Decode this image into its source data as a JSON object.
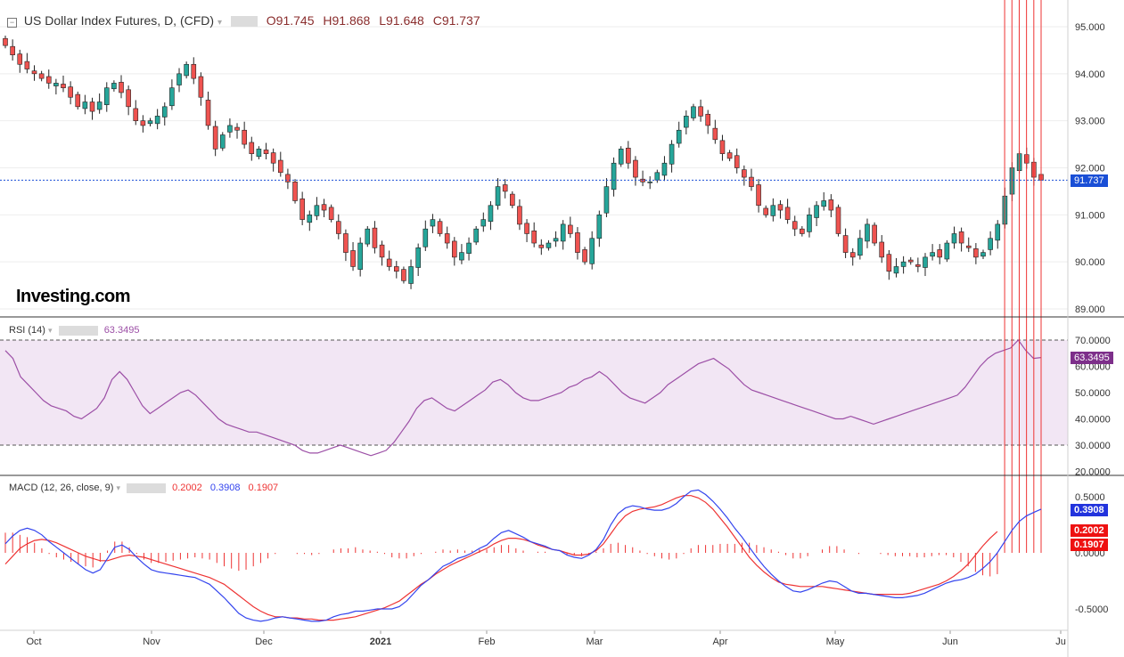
{
  "header": {
    "symbol": "US Dollar Index Futures, D, (CFD)",
    "open": "O91.745",
    "high": "H91.868",
    "low": "L91.648",
    "close": "C91.737"
  },
  "watermark": "Investing.com",
  "price_axis": [
    "95.000",
    "94.000",
    "93.000",
    "92.000",
    "91.000",
    "90.000",
    "89.000"
  ],
  "last_price_label": "91.737",
  "rsi": {
    "label": "RSI (14)",
    "value": "63.3495",
    "axis": [
      "70.0000",
      "60.0000",
      "50.0000",
      "40.0000",
      "30.0000",
      "20.0000"
    ]
  },
  "macd": {
    "label": "MACD (12, 26, close, 9)",
    "hist": "0.2002",
    "macd": "0.3908",
    "signal": "0.1907",
    "axis": [
      "0.5000",
      "0.0000",
      "-0.5000"
    ]
  },
  "time_axis": [
    "Oct",
    "Nov",
    "Dec",
    "2021",
    "Feb",
    "Mar",
    "Apr",
    "May",
    "Jun",
    "Ju"
  ],
  "colors": {
    "up": "#26a69a",
    "down": "#ef5350",
    "rsi": "#9c4fa6",
    "rsi_band": "#f2e6f4",
    "macd": "#3344ee",
    "signal": "#ee3333",
    "hist": "#ee3333",
    "price_line": "#1a4fd6"
  },
  "chart_data": [
    {
      "type": "candlestick",
      "title": "US Dollar Index Futures, D, (CFD)",
      "ylim": [
        88.9,
        95.3
      ],
      "last": 91.737,
      "close_series": [
        94.6,
        94.4,
        94.2,
        94.1,
        94.0,
        93.9,
        93.8,
        93.8,
        93.7,
        93.5,
        93.3,
        93.4,
        93.2,
        93.4,
        93.7,
        93.8,
        93.6,
        93.3,
        93.0,
        92.9,
        93.0,
        93.1,
        93.3,
        93.7,
        94.0,
        94.2,
        93.9,
        93.5,
        92.9,
        92.4,
        92.7,
        92.9,
        92.8,
        92.5,
        92.3,
        92.4,
        92.3,
        92.1,
        91.9,
        91.7,
        91.3,
        90.9,
        91.0,
        91.2,
        91.1,
        90.9,
        90.6,
        90.2,
        89.9,
        90.4,
        90.7,
        90.3,
        90.1,
        89.9,
        89.8,
        89.6,
        89.9,
        90.3,
        90.7,
        90.9,
        90.6,
        90.4,
        90.1,
        90.2,
        90.4,
        90.7,
        90.9,
        91.2,
        91.6,
        91.5,
        91.2,
        90.8,
        90.6,
        90.4,
        90.3,
        90.4,
        90.5,
        90.8,
        90.6,
        90.2,
        90.0,
        90.5,
        91.0,
        91.6,
        92.1,
        92.4,
        92.1,
        91.8,
        91.7,
        91.7,
        91.9,
        92.1,
        92.5,
        92.8,
        93.1,
        93.3,
        93.1,
        92.9,
        92.6,
        92.3,
        92.2,
        92.0,
        91.8,
        91.6,
        91.2,
        91.0,
        91.2,
        91.1,
        90.9,
        90.7,
        90.6,
        91.0,
        91.2,
        91.3,
        91.1,
        90.6,
        90.2,
        90.1,
        90.5,
        90.8,
        90.4,
        90.1,
        89.8,
        89.9,
        90.0,
        90.0,
        89.9,
        90.1,
        90.2,
        90.1,
        90.4,
        90.6,
        90.4,
        90.3,
        90.1,
        90.2,
        90.5,
        90.8,
        91.4,
        92.0,
        92.3,
        92.1,
        91.8,
        91.737
      ],
      "series": [
        {
          "name": "OHLC",
          "open": [],
          "high": [],
          "low": [],
          "close": []
        }
      ]
    },
    {
      "type": "line",
      "title": "RSI (14)",
      "ylim": [
        18,
        76
      ],
      "bands": [
        30,
        70
      ],
      "values": [
        66,
        63,
        56,
        53,
        50,
        47,
        45,
        44,
        43,
        41,
        40,
        42,
        44,
        48,
        55,
        58,
        55,
        50,
        45,
        42,
        44,
        46,
        48,
        50,
        51,
        49,
        46,
        43,
        40,
        38,
        37,
        36,
        35,
        35,
        34,
        33,
        32,
        31,
        30,
        28,
        27,
        27,
        28,
        29,
        30,
        29,
        28,
        27,
        26,
        27,
        28,
        31,
        35,
        39,
        44,
        47,
        48,
        46,
        44,
        43,
        45,
        47,
        49,
        51,
        54,
        55,
        53,
        50,
        48,
        47,
        47,
        48,
        49,
        50,
        52,
        53,
        55,
        56,
        58,
        56,
        53,
        50,
        48,
        47,
        46,
        48,
        50,
        53,
        55,
        57,
        59,
        61,
        62,
        63,
        61,
        59,
        56,
        53,
        51,
        50,
        49,
        48,
        47,
        46,
        45,
        44,
        43,
        42,
        41,
        40,
        40,
        41,
        40,
        39,
        38,
        39,
        40,
        41,
        42,
        43,
        44,
        45,
        46,
        47,
        48,
        49,
        52,
        56,
        60,
        63,
        65,
        66,
        67,
        70,
        66,
        63,
        63.35
      ]
    },
    {
      "type": "line",
      "title": "MACD (12, 26, close, 9)",
      "ylim": [
        -0.75,
        0.62
      ],
      "series": [
        {
          "name": "MACD",
          "values": [
            0.08,
            0.15,
            0.2,
            0.22,
            0.2,
            0.16,
            0.1,
            0.05,
            0.0,
            -0.05,
            -0.1,
            -0.15,
            -0.18,
            -0.15,
            -0.05,
            0.05,
            0.07,
            0.03,
            -0.04,
            -0.1,
            -0.15,
            -0.17,
            -0.18,
            -0.19,
            -0.2,
            -0.21,
            -0.22,
            -0.25,
            -0.28,
            -0.34,
            -0.4,
            -0.47,
            -0.54,
            -0.58,
            -0.6,
            -0.61,
            -0.6,
            -0.58,
            -0.57,
            -0.58,
            -0.59,
            -0.6,
            -0.61,
            -0.61,
            -0.6,
            -0.57,
            -0.55,
            -0.54,
            -0.52,
            -0.52,
            -0.51,
            -0.5,
            -0.5,
            -0.5,
            -0.48,
            -0.43,
            -0.36,
            -0.29,
            -0.24,
            -0.18,
            -0.12,
            -0.09,
            -0.05,
            -0.03,
            0.0,
            0.04,
            0.07,
            0.13,
            0.18,
            0.2,
            0.17,
            0.14,
            0.1,
            0.08,
            0.06,
            0.03,
            0.02,
            -0.02,
            -0.04,
            -0.05,
            -0.02,
            0.03,
            0.12,
            0.25,
            0.35,
            0.4,
            0.42,
            0.41,
            0.39,
            0.38,
            0.38,
            0.4,
            0.44,
            0.5,
            0.55,
            0.56,
            0.52,
            0.46,
            0.39,
            0.31,
            0.22,
            0.14,
            0.05,
            -0.04,
            -0.12,
            -0.19,
            -0.25,
            -0.3,
            -0.34,
            -0.35,
            -0.33,
            -0.3,
            -0.27,
            -0.25,
            -0.26,
            -0.3,
            -0.34,
            -0.36,
            -0.36,
            -0.37,
            -0.38,
            -0.39,
            -0.4,
            -0.4,
            -0.39,
            -0.38,
            -0.36,
            -0.33,
            -0.3,
            -0.27,
            -0.25,
            -0.24,
            -0.22,
            -0.19,
            -0.14,
            -0.08,
            0.0,
            0.1,
            0.2,
            0.28,
            0.33,
            0.36,
            0.39
          ]
        },
        {
          "name": "Signal",
          "values": [
            -0.1,
            -0.03,
            0.04,
            0.08,
            0.11,
            0.12,
            0.11,
            0.09,
            0.06,
            0.03,
            0.0,
            -0.03,
            -0.05,
            -0.07,
            -0.07,
            -0.05,
            -0.03,
            -0.02,
            -0.03,
            -0.04,
            -0.06,
            -0.08,
            -0.1,
            -0.12,
            -0.14,
            -0.16,
            -0.18,
            -0.2,
            -0.22,
            -0.25,
            -0.28,
            -0.33,
            -0.38,
            -0.43,
            -0.48,
            -0.52,
            -0.55,
            -0.57,
            -0.57,
            -0.58,
            -0.58,
            -0.59,
            -0.59,
            -0.6,
            -0.6,
            -0.6,
            -0.59,
            -0.58,
            -0.57,
            -0.55,
            -0.53,
            -0.51,
            -0.49,
            -0.46,
            -0.43,
            -0.38,
            -0.33,
            -0.28,
            -0.24,
            -0.19,
            -0.15,
            -0.11,
            -0.08,
            -0.05,
            -0.02,
            0.01,
            0.04,
            0.08,
            0.11,
            0.13,
            0.13,
            0.12,
            0.1,
            0.07,
            0.05,
            0.03,
            0.02,
            0.0,
            -0.02,
            -0.02,
            -0.01,
            0.02,
            0.08,
            0.17,
            0.26,
            0.33,
            0.37,
            0.39,
            0.4,
            0.41,
            0.43,
            0.46,
            0.49,
            0.51,
            0.51,
            0.49,
            0.45,
            0.39,
            0.31,
            0.23,
            0.14,
            0.05,
            -0.04,
            -0.11,
            -0.17,
            -0.22,
            -0.26,
            -0.28,
            -0.29,
            -0.3,
            -0.3,
            -0.3,
            -0.3,
            -0.31,
            -0.32,
            -0.33,
            -0.34,
            -0.35,
            -0.36,
            -0.37,
            -0.37,
            -0.37,
            -0.37,
            -0.37,
            -0.36,
            -0.34,
            -0.32,
            -0.3,
            -0.28,
            -0.25,
            -0.21,
            -0.16,
            -0.1,
            -0.02,
            0.06,
            0.13,
            0.19
          ]
        },
        {
          "name": "Histogram",
          "values": []
        }
      ]
    }
  ]
}
